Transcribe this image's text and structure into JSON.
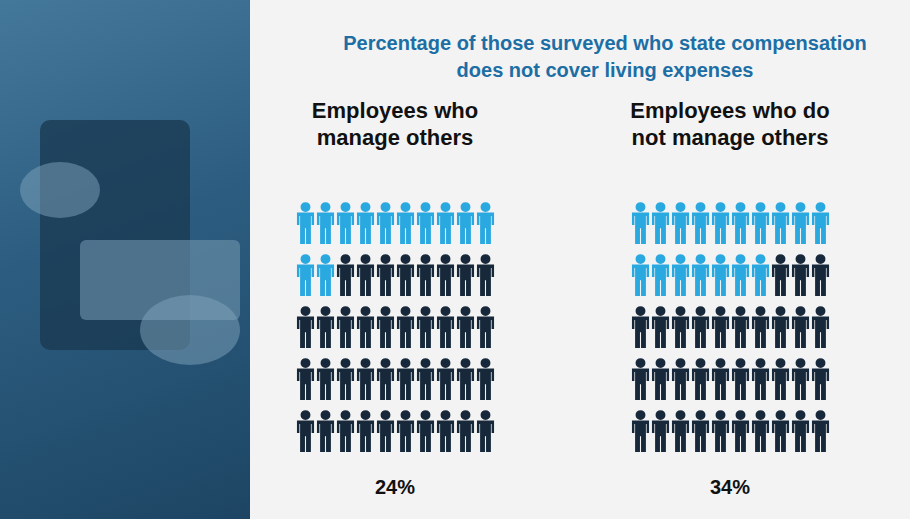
{
  "chart_data": {
    "type": "pictograph",
    "title": "Percentage of those surveyed who state compensation does not cover living expenses",
    "categories": [
      "Employees who manage others",
      "Employees who do not manage others"
    ],
    "values": [
      24,
      34
    ],
    "value_labels": [
      "24%",
      "34%"
    ],
    "ylim": [
      0,
      100
    ],
    "color": "#2aa8e0",
    "data_labels": true,
    "tick_labels": false
  }
}
